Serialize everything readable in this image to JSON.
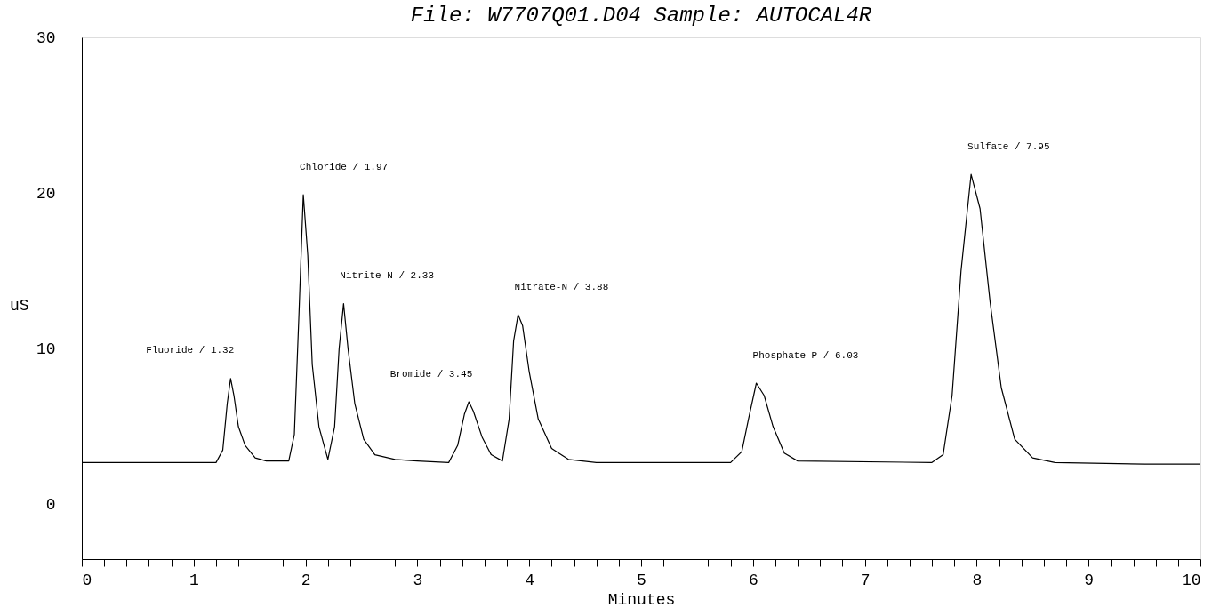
{
  "chart_data": {
    "type": "line",
    "title": "File: W7707Q01.D04 Sample: AUTOCAL4R",
    "xlabel": "Minutes",
    "ylabel": "uS",
    "xlim": [
      0,
      10
    ],
    "ylim": [
      -3.5,
      30
    ],
    "xticks": [
      0,
      {
        "value": 0.2,
        "label": null
      },
      {
        "value": 0.4,
        "label": null
      },
      {
        "value": 0.6,
        "label": null
      },
      {
        "value": 0.8,
        "label": null
      },
      1,
      {
        "value": 1.2,
        "label": null
      },
      {
        "value": 1.4,
        "label": null
      },
      {
        "value": 1.6,
        "label": null
      },
      {
        "value": 1.8,
        "label": null
      },
      2,
      {
        "value": 2.2,
        "label": null
      },
      {
        "value": 2.4,
        "label": null
      },
      {
        "value": 2.6,
        "label": null
      },
      {
        "value": 2.8,
        "label": null
      },
      3,
      {
        "value": 3.2,
        "label": null
      },
      {
        "value": 3.4,
        "label": null
      },
      {
        "value": 3.6,
        "label": null
      },
      {
        "value": 3.8,
        "label": null
      },
      4,
      {
        "value": 4.2,
        "label": null
      },
      {
        "value": 4.4,
        "label": null
      },
      {
        "value": 4.6,
        "label": null
      },
      {
        "value": 4.8,
        "label": null
      },
      5,
      {
        "value": 5.2,
        "label": null
      },
      {
        "value": 5.4,
        "label": null
      },
      {
        "value": 5.6,
        "label": null
      },
      {
        "value": 5.8,
        "label": null
      },
      6,
      {
        "value": 6.2,
        "label": null
      },
      {
        "value": 6.4,
        "label": null
      },
      {
        "value": 6.6,
        "label": null
      },
      {
        "value": 6.8,
        "label": null
      },
      7,
      {
        "value": 7.2,
        "label": null
      },
      {
        "value": 7.4,
        "label": null
      },
      {
        "value": 7.6,
        "label": null
      },
      {
        "value": 7.8,
        "label": null
      },
      8,
      {
        "value": 8.2,
        "label": null
      },
      {
        "value": 8.4,
        "label": null
      },
      {
        "value": 8.6,
        "label": null
      },
      {
        "value": 8.8,
        "label": null
      },
      9,
      {
        "value": 9.2,
        "label": null
      },
      {
        "value": 9.4,
        "label": null
      },
      {
        "value": 9.6,
        "label": null
      },
      {
        "value": 9.8,
        "label": null
      },
      10
    ],
    "yticks": [
      0,
      10,
      20,
      30
    ],
    "grid": false,
    "marker": "none",
    "line_style": "solid",
    "series": [
      {
        "color": "#000000",
        "x": [
          0,
          1.2,
          1.26,
          1.3,
          1.33,
          1.36,
          1.4,
          1.46,
          1.55,
          1.65,
          1.85,
          1.9,
          1.94,
          1.98,
          2.02,
          2.06,
          2.12,
          2.2,
          2.26,
          2.3,
          2.34,
          2.38,
          2.44,
          2.52,
          2.62,
          2.8,
          3.0,
          3.28,
          3.36,
          3.42,
          3.46,
          3.5,
          3.58,
          3.66,
          3.76,
          3.82,
          3.86,
          3.9,
          3.94,
          4.0,
          4.08,
          4.2,
          4.35,
          4.6,
          5.8,
          5.9,
          5.96,
          6.03,
          6.1,
          6.18,
          6.28,
          6.4,
          7.6,
          7.7,
          7.78,
          7.86,
          7.95,
          8.03,
          8.12,
          8.22,
          8.34,
          8.5,
          8.7,
          9.5,
          10
        ],
        "values": [
          2.7,
          2.7,
          3.5,
          6.5,
          8.1,
          7.0,
          5.0,
          3.8,
          3.0,
          2.8,
          2.8,
          4.5,
          12,
          19.9,
          16,
          9,
          5,
          2.9,
          5,
          10,
          12.9,
          10,
          6.5,
          4.2,
          3.2,
          2.9,
          2.8,
          2.7,
          3.8,
          5.8,
          6.6,
          6.0,
          4.3,
          3.2,
          2.8,
          5.5,
          10.5,
          12.2,
          11.5,
          8.5,
          5.5,
          3.6,
          2.9,
          2.7,
          2.7,
          3.4,
          5.5,
          7.8,
          7.0,
          5.0,
          3.3,
          2.8,
          2.7,
          3.2,
          7,
          15,
          21.2,
          19,
          13,
          7.5,
          4.2,
          3.0,
          2.7,
          2.6,
          2.6
        ]
      }
    ],
    "annotations": [
      {
        "text": "Fluoride /   1.32",
        "x": 1.33,
        "y": 8.1
      },
      {
        "text": "Chloride /   1.97",
        "x": 1.98,
        "y": 19.9
      },
      {
        "text": "Nitrite-N /   2.33",
        "x": 2.34,
        "y": 12.9
      },
      {
        "text": "Bromide /   3.45",
        "x": 3.46,
        "y": 6.6
      },
      {
        "text": "Nitrate-N /   3.88",
        "x": 3.9,
        "y": 12.2
      },
      {
        "text": "Phosphate-P /   6.03",
        "x": 6.03,
        "y": 7.8
      },
      {
        "text": "Sulfate /   7.95",
        "x": 7.95,
        "y": 21.2
      }
    ]
  }
}
